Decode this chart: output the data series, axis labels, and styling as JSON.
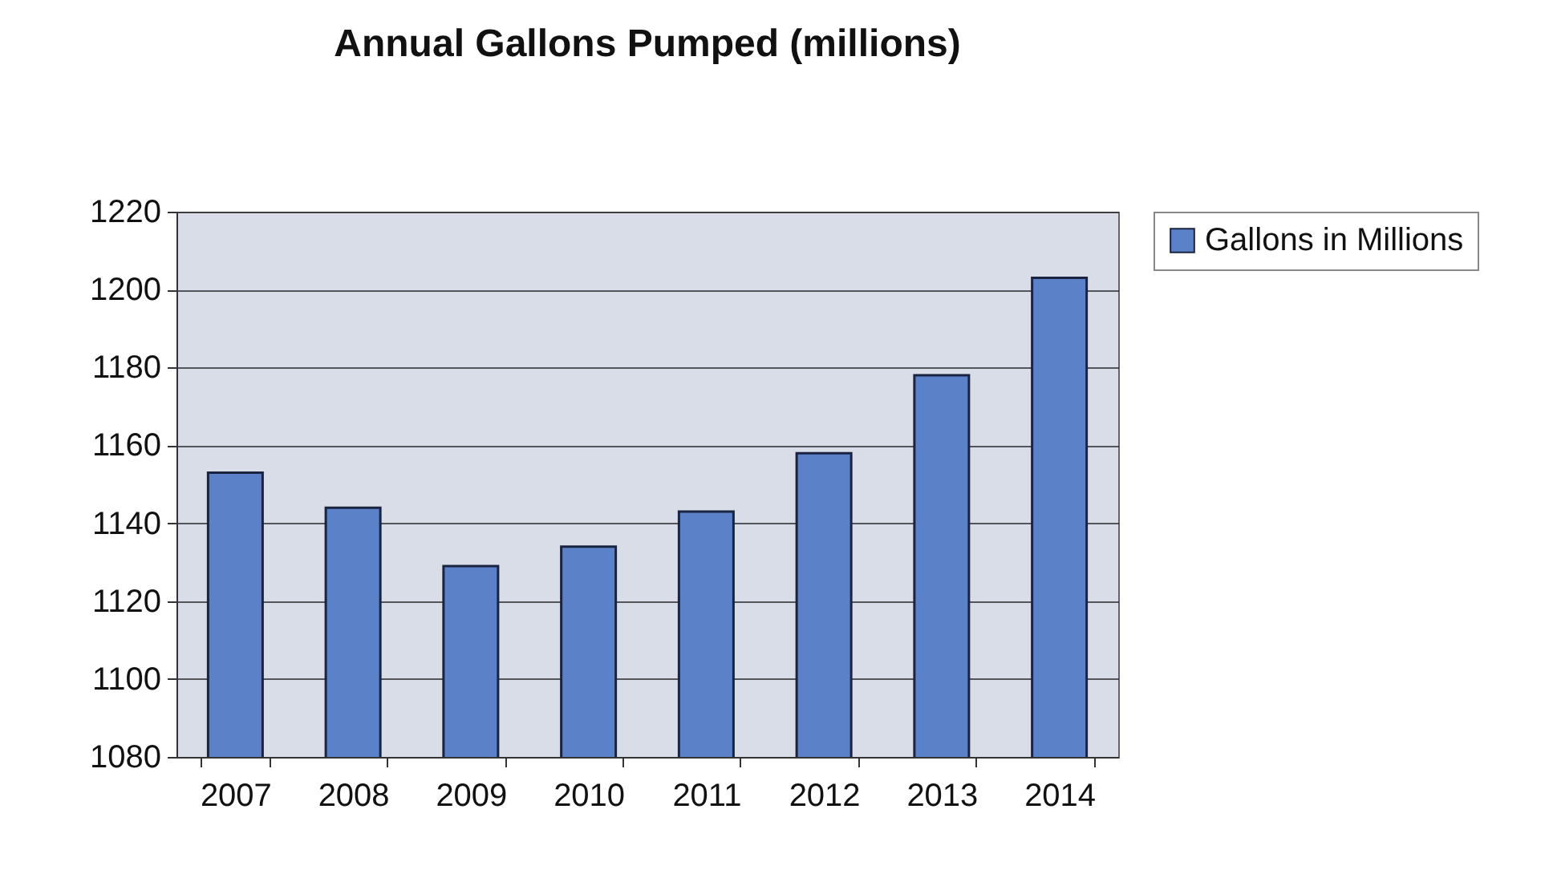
{
  "chart_data": {
    "type": "bar",
    "title": "Annual Gallons Pumped (millions)",
    "categories": [
      "2007",
      "2008",
      "2009",
      "2010",
      "2011",
      "2012",
      "2013",
      "2014"
    ],
    "series": [
      {
        "name": "Gallons in Millions",
        "color": "#5b82c8",
        "values": [
          1153,
          1144,
          1129,
          1134,
          1143,
          1158,
          1178,
          1203
        ]
      }
    ],
    "ylim": [
      1080,
      1220
    ],
    "yticks": [
      1080,
      1100,
      1120,
      1140,
      1160,
      1180,
      1200,
      1220
    ],
    "grid": "y",
    "legend": "right"
  }
}
